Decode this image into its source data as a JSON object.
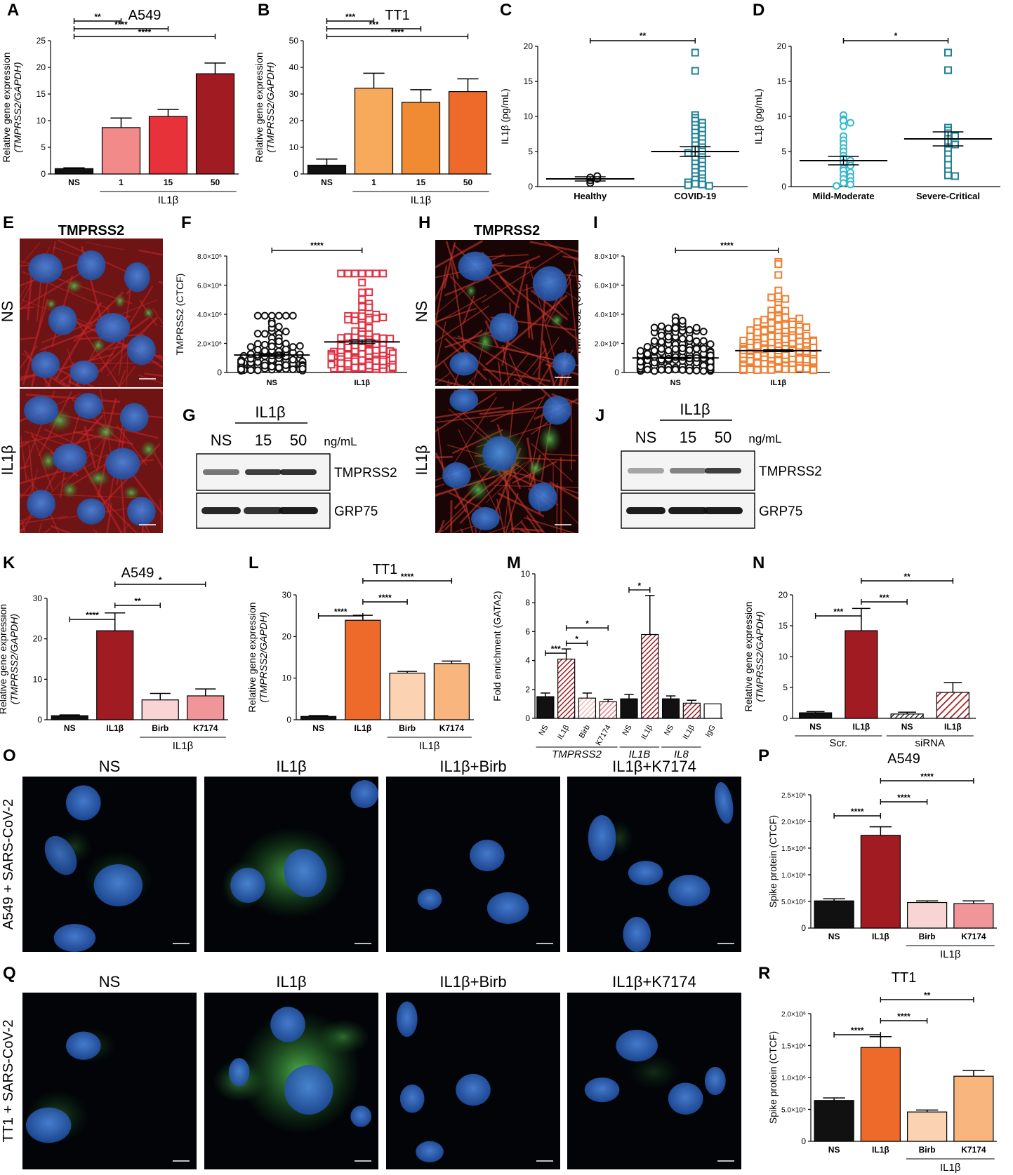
{
  "colors": {
    "black": "#111111",
    "a549_light": "#f28a8a",
    "a549_mid": "#e8323a",
    "a549_dark": "#a11c22",
    "tt1_light": "#f7a95c",
    "tt1_mid": "#f18b33",
    "tt1_dark": "#ee6a2a",
    "peach": "#fbd3b3",
    "apricot": "#f8b57d",
    "pink_light": "#f9d4d4",
    "pink": "#f0969a",
    "teal": "#1e7f95",
    "cyan": "#36b8cc",
    "red_marker": "#e03040",
    "orange_marker": "#f07e2f",
    "cell_red": "#8a1a1a",
    "cell_blue": "#2a5ab8",
    "cell_green": "#3fbf4a",
    "cell_black": "#020408"
  },
  "panel_letters": [
    "A",
    "B",
    "C",
    "D",
    "E",
    "F",
    "G",
    "H",
    "I",
    "J",
    "K",
    "L",
    "M",
    "N",
    "O",
    "P",
    "Q",
    "R"
  ],
  "micro": {
    "E": {
      "title": "TMPRSS2",
      "rows": [
        "NS",
        "IL1β"
      ]
    },
    "H": {
      "title": "TMPRSS2",
      "rows": [
        "NS",
        "IL1β"
      ]
    },
    "O": {
      "row_label": "A549 + SARS-CoV-2",
      "conditions": [
        "NS",
        "IL1β",
        "IL1β+Birb",
        "IL1β+K7174"
      ]
    },
    "Q": {
      "row_label": "TT1 + SARS-CoV-2",
      "conditions": [
        "NS",
        "IL1β",
        "IL1β+Birb",
        "IL1β+K7174"
      ]
    }
  },
  "blots": {
    "G": {
      "group": "IL1β",
      "lanes": [
        "NS",
        "15",
        "50"
      ],
      "unit": "ng/mL",
      "bands": [
        "TMPRSS2",
        "GRP75"
      ],
      "tmprss2_intensity": [
        0.55,
        0.8,
        0.85
      ],
      "grp75_intensity": [
        0.9,
        0.85,
        0.95
      ]
    },
    "J": {
      "group": "IL1β",
      "lanes": [
        "NS",
        "15",
        "50"
      ],
      "unit": "ng/mL",
      "bands": [
        "TMPRSS2",
        "GRP75"
      ],
      "tmprss2_intensity": [
        0.35,
        0.5,
        0.8
      ],
      "grp75_intensity": [
        0.95,
        0.95,
        0.95
      ]
    }
  },
  "chart_data": [
    {
      "panel": "A",
      "type": "bar",
      "title": "A549",
      "ylabel": "Relative gene expression",
      "ylabel2": "(TMPRSS2/GAPDH)",
      "categories": [
        "NS",
        "1",
        "15",
        "50"
      ],
      "values": [
        1,
        8.7,
        10.8,
        18.8
      ],
      "errors": [
        0.15,
        1.8,
        1.3,
        2.0
      ],
      "ylim": [
        0,
        25
      ],
      "yticks": [
        "0",
        "5",
        "10",
        "15",
        "20",
        "25"
      ],
      "group_label": "IL1β",
      "group_from": 1,
      "fills": [
        "black",
        "a549_light",
        "a549_mid",
        "a549_dark"
      ],
      "sig": [
        {
          "from": 0,
          "to": 1,
          "label": "**"
        },
        {
          "from": 0,
          "to": 2,
          "label": "****"
        },
        {
          "from": 0,
          "to": 3,
          "label": "****"
        }
      ]
    },
    {
      "panel": "B",
      "type": "bar",
      "title": "TT1",
      "ylabel": "Relative gene expression",
      "ylabel2": "(TMPRSS2/GAPDH)",
      "categories": [
        "NS",
        "1",
        "15",
        "50"
      ],
      "values": [
        3.3,
        32.2,
        26.9,
        30.9
      ],
      "errors": [
        2.3,
        5.6,
        4.7,
        4.8
      ],
      "ylim": [
        0,
        50
      ],
      "yticks": [
        "0",
        "10",
        "20",
        "30",
        "40",
        "50"
      ],
      "group_label": "IL1β",
      "group_from": 1,
      "fills": [
        "black",
        "tt1_light",
        "tt1_mid",
        "tt1_dark"
      ],
      "sig": [
        {
          "from": 0,
          "to": 1,
          "label": "***"
        },
        {
          "from": 0,
          "to": 2,
          "label": "***"
        },
        {
          "from": 0,
          "to": 3,
          "label": "****"
        }
      ]
    },
    {
      "panel": "C",
      "type": "scatter",
      "ylabel": "IL1β (pg/mL)",
      "categories": [
        "Healthy",
        "COVID-19"
      ],
      "ylim": [
        0,
        20
      ],
      "yticks": [
        "0",
        "5",
        "10",
        "15",
        "20"
      ],
      "groups": [
        {
          "marker": "circle",
          "color": "black",
          "mean": 1.1,
          "sem": 0.3,
          "values": [
            0.5,
            0.9,
            1.1,
            1.3,
            1.5
          ]
        },
        {
          "marker": "square",
          "color": "teal",
          "mean": 5.0,
          "sem": 0.7,
          "values": [
            19.1,
            16.5,
            10.2,
            9.8,
            9.4,
            9.1,
            8.8,
            8.6,
            8.3,
            8.0,
            7.7,
            7.4,
            7.1,
            6.8,
            6.5,
            6.2,
            5.9,
            5.6,
            5.3,
            5.0,
            4.8,
            4.5,
            4.2,
            3.9,
            3.6,
            3.3,
            3.0,
            2.7,
            2.4,
            2.1,
            1.8,
            1.5,
            1.2,
            1.0,
            0.8,
            0.6,
            0.4,
            0.3,
            0.2,
            0.1
          ]
        }
      ],
      "sig": [
        {
          "from": 0,
          "to": 1,
          "label": "**"
        }
      ]
    },
    {
      "panel": "D",
      "type": "scatter",
      "ylabel": "IL1β (pg/mL)",
      "categories": [
        "Mild-Moderate",
        "Severe-Critical"
      ],
      "ylim": [
        0,
        20
      ],
      "yticks": [
        "0",
        "5",
        "10",
        "15",
        "20"
      ],
      "groups": [
        {
          "marker": "circle",
          "color": "cyan",
          "mean": 3.7,
          "sem": 0.6,
          "values": [
            10.2,
            9.6,
            9.4,
            9.1,
            8.6,
            7.2,
            6.6,
            6.1,
            5.5,
            5.0,
            4.4,
            4.0,
            3.7,
            3.4,
            3.0,
            2.6,
            2.3,
            2.0,
            1.7,
            1.4,
            1.1,
            0.8,
            0.5,
            0.3,
            0.1
          ]
        },
        {
          "marker": "square",
          "color": "teal",
          "mean": 6.8,
          "sem": 1.0,
          "values": [
            19.1,
            16.6,
            8.4,
            8.0,
            7.6,
            7.2,
            6.8,
            6.4,
            6.0,
            5.6,
            5.2,
            4.6,
            3.9,
            3.1,
            2.2,
            1.6,
            1.5
          ]
        }
      ],
      "sig": [
        {
          "from": 0,
          "to": 1,
          "label": "*"
        }
      ]
    },
    {
      "panel": "F",
      "type": "scatter",
      "ylabel": "TMPRSS2 (CTCF)",
      "categories": [
        "NS",
        "IL1β"
      ],
      "ylim": [
        0,
        8000000
      ],
      "yticks": [
        "0",
        "2.0×10⁶",
        "4.0×10⁶",
        "6.0×10⁶",
        "8.0×10⁶"
      ],
      "groups": [
        {
          "marker": "circle",
          "color": "black",
          "mean": 1200000,
          "sem": 90000,
          "n": 110,
          "max": 3900000
        },
        {
          "marker": "square",
          "color": "red_marker",
          "mean": 2100000,
          "sem": 120000,
          "n": 130,
          "max": 6800000
        }
      ],
      "sig": [
        {
          "from": 0,
          "to": 1,
          "label": "****"
        }
      ]
    },
    {
      "panel": "I",
      "type": "scatter",
      "ylabel": "TMPRSS2 (CTCF)",
      "categories": [
        "NS",
        "IL1β"
      ],
      "ylim": [
        0,
        8000000
      ],
      "yticks": [
        "0",
        "2.0×10⁶",
        "4.0×10⁶",
        "6.0×10⁶",
        "8.0×10⁶"
      ],
      "groups": [
        {
          "marker": "circle",
          "color": "black",
          "mean": 1000000,
          "sem": 40000,
          "n": 260,
          "max": 3800000
        },
        {
          "marker": "square",
          "color": "orange_marker",
          "mean": 1500000,
          "sem": 60000,
          "n": 280,
          "max": 7600000
        }
      ],
      "sig": [
        {
          "from": 0,
          "to": 1,
          "label": "****"
        }
      ]
    },
    {
      "panel": "K",
      "type": "bar",
      "title": "A549",
      "ylabel": "Relative gene expression",
      "ylabel2": "(TMPRSS2/GAPDH)",
      "categories": [
        "NS",
        "IL1β",
        "Birb",
        "K7174"
      ],
      "values": [
        1.0,
        22.0,
        4.9,
        5.9
      ],
      "errors": [
        0.2,
        4.4,
        1.6,
        1.7
      ],
      "ylim": [
        0,
        30
      ],
      "yticks": [
        "0",
        "10",
        "20",
        "30"
      ],
      "group_label": "IL1β",
      "group_from": 2,
      "fills": [
        "black",
        "a549_dark",
        "pink_light",
        "pink"
      ],
      "sig": [
        {
          "from": 0,
          "to": 1,
          "label": "****"
        },
        {
          "from": 1,
          "to": 2,
          "label": "**"
        },
        {
          "from": 1,
          "to": 3,
          "label": "*"
        }
      ]
    },
    {
      "panel": "L",
      "type": "bar",
      "title": "TT1",
      "ylabel": "Relative gene expression",
      "ylabel2": "(TMPRSS2/GAPDH)",
      "categories": [
        "NS",
        "IL1β",
        "Birb",
        "K7174"
      ],
      "values": [
        0.8,
        23.9,
        11.2,
        13.5
      ],
      "errors": [
        0.2,
        1.2,
        0.4,
        0.6
      ],
      "ylim": [
        0,
        30
      ],
      "yticks": [
        "0",
        "10",
        "20",
        "30"
      ],
      "group_label": "IL1β",
      "group_from": 2,
      "fills": [
        "black",
        "tt1_dark",
        "peach",
        "apricot"
      ],
      "sig": [
        {
          "from": 0,
          "to": 1,
          "label": "****"
        },
        {
          "from": 1,
          "to": 2,
          "label": "****"
        },
        {
          "from": 1,
          "to": 3,
          "label": "****"
        }
      ]
    },
    {
      "panel": "M",
      "type": "bar",
      "ylabel": "Fold enrichment (GATA2)",
      "categories": [
        "NS",
        "IL1β",
        "Birb",
        "K7174",
        "NS",
        "IL1β",
        "NS",
        "IL1β",
        "IgG"
      ],
      "values": [
        1.5,
        4.1,
        1.4,
        1.15,
        1.35,
        5.8,
        1.35,
        1.05,
        1.0
      ],
      "errors": [
        0.25,
        0.7,
        0.35,
        0.15,
        0.3,
        2.7,
        0.2,
        0.2,
        0
      ],
      "ylim": [
        0,
        10
      ],
      "yticks": [
        "0",
        "2",
        "4",
        "6",
        "8",
        "10"
      ],
      "fills": [
        "black",
        "a549_dark",
        "pink_light",
        "pink",
        "black",
        "a549_dark",
        "black",
        "a549_dark",
        "white"
      ],
      "hatched": [
        false,
        true,
        true,
        true,
        false,
        true,
        false,
        true,
        false
      ],
      "gene_groups": [
        {
          "label": "TMPRSS2",
          "from": 0,
          "to": 3
        },
        {
          "label": "IL1B",
          "from": 4,
          "to": 5
        },
        {
          "label": "IL8",
          "from": 6,
          "to": 7
        }
      ],
      "sig": [
        {
          "from": 0,
          "to": 1,
          "label": "***"
        },
        {
          "from": 1,
          "to": 2,
          "label": "*"
        },
        {
          "from": 1,
          "to": 3,
          "label": "*"
        },
        {
          "from": 4,
          "to": 5,
          "label": "*"
        }
      ]
    },
    {
      "panel": "N",
      "type": "bar",
      "ylabel": "Relative gene expression",
      "ylabel2": "(TMPRSS2/GAPDH)",
      "categories": [
        "NS",
        "IL1β",
        "NS",
        "IL1β"
      ],
      "values": [
        0.9,
        14.2,
        0.7,
        4.2
      ],
      "errors": [
        0.2,
        3.6,
        0.3,
        1.6
      ],
      "ylim": [
        0,
        20
      ],
      "yticks": [
        "0",
        "5",
        "10",
        "15",
        "20"
      ],
      "fills": [
        "black",
        "a549_dark",
        "white",
        "white"
      ],
      "hatched": [
        false,
        false,
        true,
        true
      ],
      "hatch_colors": [
        "black",
        "black",
        "black",
        "a549_dark"
      ],
      "gene_groups": [
        {
          "label": "Scr.",
          "from": 0,
          "to": 1
        },
        {
          "label": "siRNA",
          "from": 2,
          "to": 3
        }
      ],
      "sig": [
        {
          "from": 0,
          "to": 1,
          "label": "***"
        },
        {
          "from": 1,
          "to": 2,
          "label": "***"
        },
        {
          "from": 1,
          "to": 3,
          "label": "**"
        }
      ]
    },
    {
      "panel": "P",
      "type": "bar",
      "title": "A549",
      "ylabel": "Spike protein (CTCF)",
      "categories": [
        "NS",
        "IL1β",
        "Birb",
        "K7174"
      ],
      "values": [
        510000,
        1740000,
        480000,
        460000
      ],
      "errors": [
        40000,
        160000,
        30000,
        50000
      ],
      "ylim": [
        0,
        2500000
      ],
      "yticks": [
        "0",
        "5.0×10⁵",
        "1.0×10⁶",
        "1.5×10⁶",
        "2.0×10⁶",
        "2.5×10⁶"
      ],
      "group_label": "IL1β",
      "group_from": 2,
      "fills": [
        "black",
        "a549_dark",
        "pink_light",
        "pink"
      ],
      "sig": [
        {
          "from": 0,
          "to": 1,
          "label": "****"
        },
        {
          "from": 1,
          "to": 2,
          "label": "****"
        },
        {
          "from": 1,
          "to": 3,
          "label": "****"
        }
      ]
    },
    {
      "panel": "R",
      "type": "bar",
      "title": "TT1",
      "ylabel": "Spike protein (CTCF)",
      "categories": [
        "NS",
        "IL1β",
        "Birb",
        "K7174"
      ],
      "values": [
        640000,
        1470000,
        460000,
        1020000
      ],
      "errors": [
        40000,
        170000,
        30000,
        90000
      ],
      "ylim": [
        0,
        2000000
      ],
      "yticks": [
        "0",
        "5.0×10⁵",
        "1.0×10⁶",
        "1.5×10⁶",
        "2.0×10⁶"
      ],
      "group_label": "IL1β",
      "group_from": 2,
      "fills": [
        "black",
        "tt1_dark",
        "peach",
        "apricot"
      ],
      "sig": [
        {
          "from": 0,
          "to": 1,
          "label": "****"
        },
        {
          "from": 1,
          "to": 2,
          "label": "****"
        },
        {
          "from": 1,
          "to": 3,
          "label": "**"
        }
      ]
    }
  ]
}
